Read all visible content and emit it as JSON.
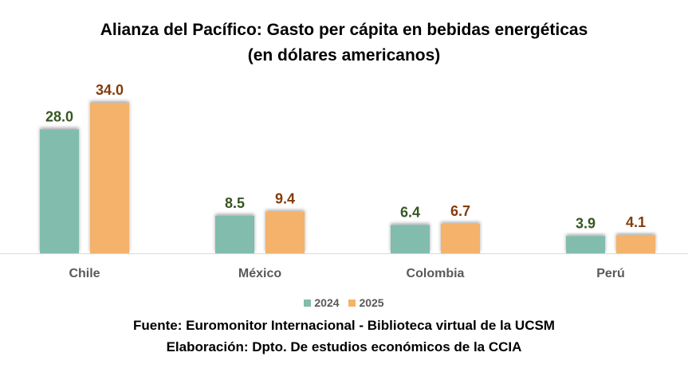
{
  "chart_data": {
    "type": "bar",
    "title": "Alianza del Pacífico: Gasto per cápita en bebidas energéticas",
    "subtitle": "(en dólares americanos)",
    "categories": [
      "Chile",
      "México",
      "Colombia",
      "Perú"
    ],
    "series": [
      {
        "name": "2024",
        "values": [
          28.0,
          8.5,
          6.4,
          3.9
        ],
        "labels": [
          "28.0",
          "8.5",
          "6.4",
          "3.9"
        ],
        "color": "#82bcac",
        "label_color": "#375623"
      },
      {
        "name": "2025",
        "values": [
          34.0,
          9.4,
          6.7,
          4.1
        ],
        "labels": [
          "34.0",
          "9.4",
          "6.7",
          "4.1"
        ],
        "color": "#f4b26a",
        "label_color": "#843c0c"
      }
    ],
    "ylim": [
      0,
      34
    ],
    "grid": false,
    "legend_position": "bottom"
  },
  "footer": {
    "source": "Fuente: Euromonitor Internacional - Biblioteca virtual de la UCSM",
    "credit": "Elaboración: Dpto. De estudios económicos de la CCIA"
  },
  "colors": {
    "axis": "#d9d9d9",
    "tick_label": "#595959"
  }
}
